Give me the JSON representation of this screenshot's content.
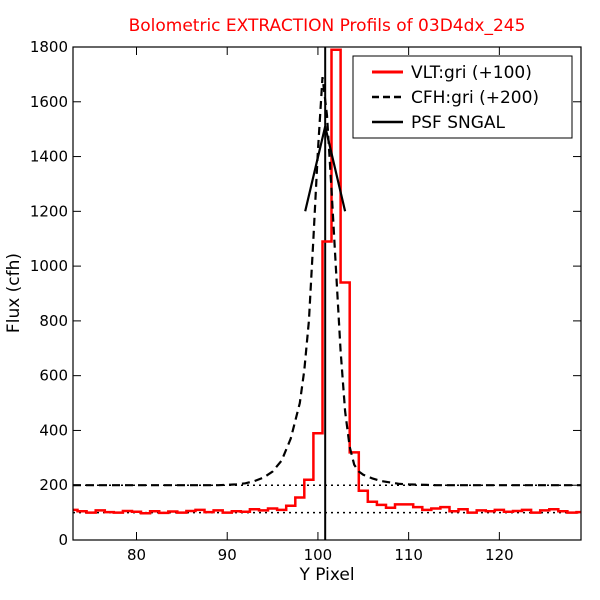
{
  "chart_data": {
    "type": "line",
    "title": "Bolometric EXTRACTION Profils of 03D4dx_245",
    "title_color": "#ff0000",
    "xlabel": "Y Pixel",
    "ylabel": "Flux (cfh)",
    "xlim": [
      73,
      129
    ],
    "ylim": [
      0,
      1800
    ],
    "xticks": [
      80,
      90,
      100,
      110,
      120
    ],
    "yticks": [
      0,
      200,
      400,
      600,
      800,
      1000,
      1200,
      1400,
      1600,
      1800
    ],
    "grid": false,
    "legend_position": "top-right",
    "series": [
      {
        "name": "VLT:gri (+100)",
        "style": "step",
        "color": "#ff0000",
        "x": [
          73,
          74,
          75,
          76,
          77,
          78,
          79,
          80,
          81,
          82,
          83,
          84,
          85,
          86,
          87,
          88,
          89,
          90,
          91,
          92,
          93,
          94,
          95,
          96,
          97,
          98,
          99,
          100,
          101,
          102,
          103,
          104,
          105,
          106,
          107,
          108,
          109,
          110,
          111,
          112,
          113,
          114,
          115,
          116,
          117,
          118,
          119,
          120,
          121,
          122,
          123,
          124,
          125,
          126,
          127,
          128,
          129
        ],
        "y": [
          110,
          105,
          100,
          108,
          102,
          100,
          106,
          103,
          98,
          105,
          99,
          104,
          100,
          106,
          110,
          102,
          108,
          100,
          105,
          103,
          112,
          108,
          115,
          110,
          125,
          155,
          220,
          390,
          1090,
          1790,
          940,
          320,
          180,
          140,
          128,
          118,
          130,
          130,
          120,
          110,
          115,
          120,
          105,
          112,
          100,
          108,
          105,
          110,
          103,
          106,
          110,
          100,
          108,
          112,
          105,
          100,
          102
        ]
      },
      {
        "name": "CFH:gri (+200)",
        "style": "dashed",
        "color": "#000000",
        "x": [
          73,
          75,
          77,
          79,
          81,
          83,
          85,
          87,
          89,
          91,
          92,
          93,
          94,
          95,
          96,
          97,
          98,
          98.5,
          99,
          99.5,
          100,
          100.5,
          101,
          101.5,
          102,
          102.5,
          103,
          103.5,
          104,
          104.5,
          105,
          106,
          107,
          108,
          109,
          110,
          111,
          112,
          113,
          115,
          117,
          119,
          121,
          123,
          125,
          127,
          129
        ],
        "y": [
          200,
          200,
          200,
          200,
          200,
          200,
          200,
          200,
          200,
          203,
          207,
          215,
          228,
          250,
          290,
          370,
          500,
          620,
          800,
          1100,
          1420,
          1690,
          1550,
          1280,
          980,
          690,
          470,
          340,
          275,
          250,
          238,
          225,
          215,
          210,
          205,
          203,
          202,
          201,
          200,
          200,
          200,
          200,
          200,
          200,
          200,
          200,
          200
        ]
      },
      {
        "name": "PSF SNGAL",
        "style": "solid",
        "color": "#000000",
        "x": [
          98.6,
          100.8,
          103
        ],
        "y": [
          1200,
          1510,
          1200
        ]
      }
    ],
    "reference_lines": [
      {
        "kind": "horizontal",
        "y": 200,
        "style": "dotted"
      },
      {
        "kind": "horizontal",
        "y": 100,
        "style": "dotted"
      },
      {
        "kind": "vertical",
        "x": 100.8,
        "style": "solid"
      }
    ]
  }
}
